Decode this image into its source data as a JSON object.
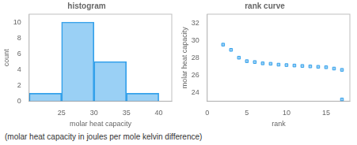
{
  "caption": "(molar heat capacity in joules per mole kelvin difference)",
  "chart_data": [
    {
      "type": "histogram",
      "title": "histogram",
      "xlabel": "molar heat capacity",
      "ylabel": "count",
      "bins": [
        20,
        25,
        30,
        35,
        40
      ],
      "values": [
        1,
        10,
        5,
        1
      ],
      "xlim": [
        20,
        42
      ],
      "xticks": [
        25,
        30,
        35,
        40
      ],
      "ylim": [
        0,
        11
      ],
      "yticks": [
        0,
        2,
        4,
        6,
        8,
        10
      ],
      "grid": false
    },
    {
      "type": "scatter",
      "title": "rank curve",
      "xlabel": "rank",
      "ylabel": "molar heat capacity",
      "x": [
        2,
        3,
        4,
        5,
        6,
        7,
        8,
        9,
        10,
        11,
        12,
        13,
        14,
        15,
        16,
        17,
        17
      ],
      "values": [
        29.5,
        28.9,
        28.0,
        27.6,
        27.5,
        27.35,
        27.3,
        27.2,
        27.15,
        27.1,
        27.05,
        27.0,
        26.95,
        26.9,
        26.75,
        26.6,
        23.2
      ],
      "marker": "square",
      "xlim": [
        0,
        18
      ],
      "xticks": [
        0,
        5,
        10,
        15
      ],
      "ylim": [
        23,
        33
      ],
      "yticks": [
        24,
        26,
        28,
        30,
        32
      ],
      "grid": false
    }
  ]
}
